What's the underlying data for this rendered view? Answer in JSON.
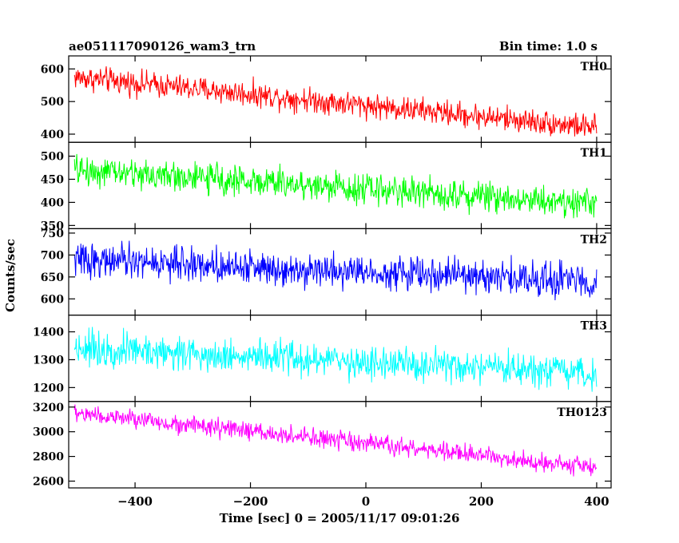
{
  "header": {
    "title": "ae051117090126_wam3_trn",
    "bin_time": "Bin time: 1.0 s"
  },
  "chart_data": {
    "type": "line",
    "x_label": "Time [sec] 0 = 2005/11/17 09:01:26",
    "y_label": "Counts/sec",
    "x_range": [
      -515,
      425
    ],
    "x_ticks": [
      -400,
      -200,
      0,
      200,
      400
    ],
    "x_tick_labels": [
      "−400",
      "−200",
      "0",
      "200",
      "400"
    ],
    "x_data_range": [
      -505,
      400
    ],
    "panels": [
      {
        "name": "TH0",
        "color": "#ff0000",
        "ylim": [
          375,
          640
        ],
        "y_ticks": [
          400,
          500,
          600
        ],
        "trend": {
          "start": 575,
          "end": 420
        },
        "noise_amplitude": 28
      },
      {
        "name": "TH1",
        "color": "#00ff00",
        "ylim": [
          343,
          530
        ],
        "y_ticks": [
          350,
          400,
          450,
          500
        ],
        "trend": {
          "start": 470,
          "end": 398
        },
        "noise_amplitude": 24
      },
      {
        "name": "TH2",
        "color": "#0000ff",
        "ylim": [
          563,
          760
        ],
        "y_ticks": [
          600,
          650,
          700,
          750
        ],
        "trend": {
          "start": 690,
          "end": 640
        },
        "noise_amplitude": 28
      },
      {
        "name": "TH3",
        "color": "#00ffff",
        "ylim": [
          1150,
          1460
        ],
        "y_ticks": [
          1200,
          1300,
          1400
        ],
        "trend": {
          "start": 1345,
          "end": 1245
        },
        "noise_amplitude": 45
      },
      {
        "name": "TH0123",
        "color": "#ff00ff",
        "ylim": [
          2545,
          3245
        ],
        "y_ticks": [
          2600,
          2800,
          3000,
          3200
        ],
        "trend": {
          "start": 3150,
          "end": 2710
        },
        "noise_amplitude": 55
      }
    ]
  }
}
